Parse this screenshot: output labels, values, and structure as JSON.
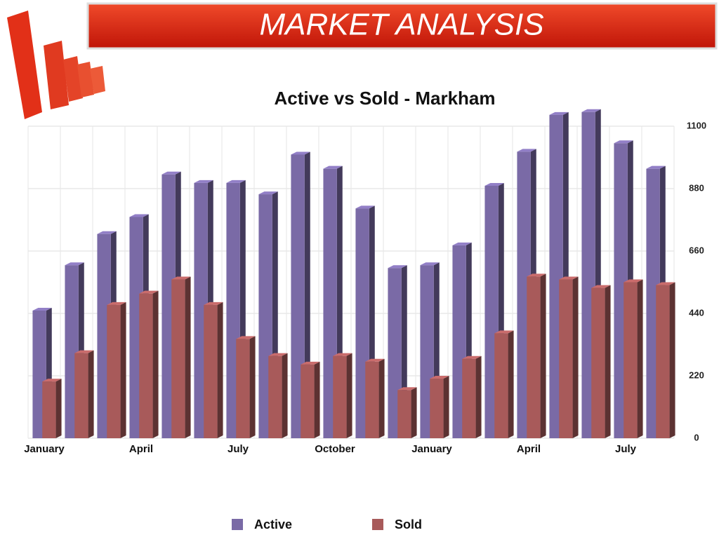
{
  "header": {
    "title": "MARKET ANALYSIS"
  },
  "chart_data": {
    "type": "bar",
    "title": "Active vs Sold - Markham",
    "categories": [
      "January",
      null,
      null,
      "April",
      null,
      null,
      "July",
      null,
      null,
      "October",
      null,
      null,
      "January",
      null,
      null,
      "April",
      null,
      null,
      "July",
      null
    ],
    "series": [
      {
        "name": "Active",
        "color": "#7a6aa6",
        "values": [
          450,
          610,
          720,
          780,
          930,
          900,
          900,
          860,
          1000,
          950,
          810,
          600,
          610,
          680,
          890,
          1010,
          1140,
          1150,
          1040,
          950
        ]
      },
      {
        "name": "Sold",
        "color": "#a85a5a",
        "values": [
          200,
          300,
          470,
          510,
          560,
          470,
          350,
          290,
          260,
          290,
          270,
          170,
          210,
          280,
          370,
          570,
          560,
          530,
          550,
          540
        ]
      }
    ],
    "ylim": [
      0,
      1100
    ],
    "yticks": [
      0,
      220,
      440,
      660,
      880,
      1100
    ],
    "grid": true,
    "legend": "bottom"
  }
}
